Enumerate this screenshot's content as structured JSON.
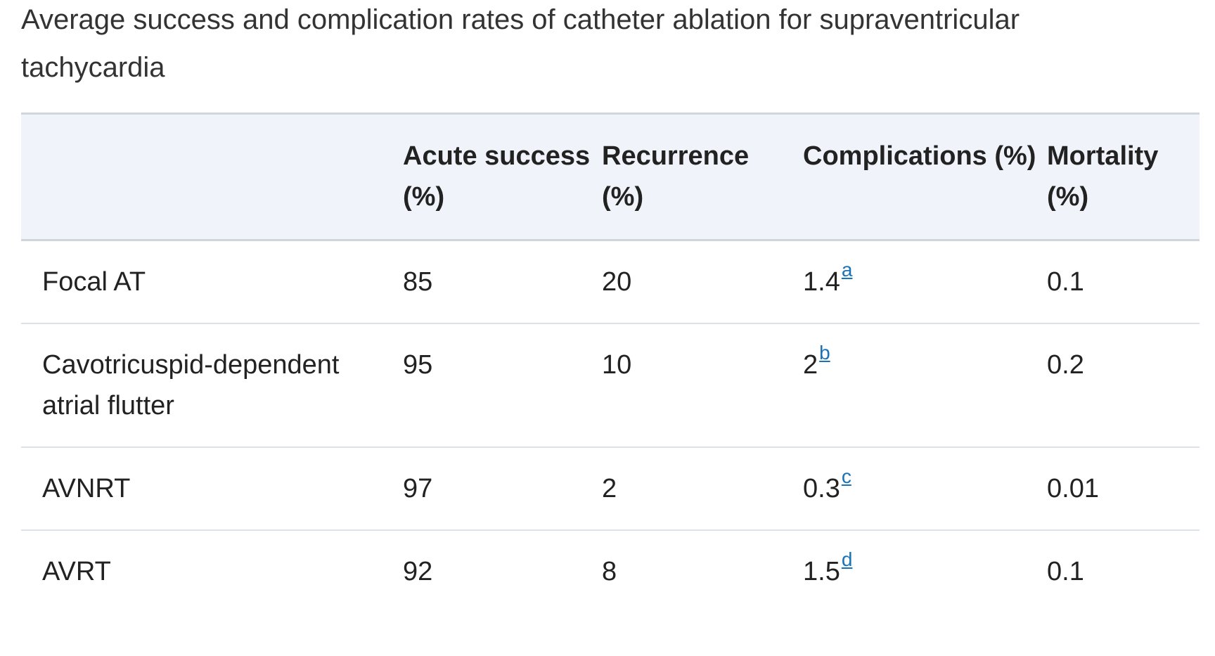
{
  "caption": "Average success and complication rates of catheter ablation for supraventricular tachycardia",
  "table": {
    "headers": [
      "",
      "Acute success (%)",
      "Recurrence (%)",
      "Complications (%)",
      "Mortality (%)"
    ],
    "rows": [
      {
        "name": "Focal AT",
        "acute_success": "85",
        "recurrence": "20",
        "complications": "1.4",
        "complications_note": "a",
        "mortality": "0.1"
      },
      {
        "name": "Cavotricuspid-dependent atrial flutter",
        "acute_success": "95",
        "recurrence": "10",
        "complications": "2",
        "complications_note": "b",
        "mortality": "0.2"
      },
      {
        "name": "AVNRT",
        "acute_success": "97",
        "recurrence": "2",
        "complications": "0.3",
        "complications_note": "c",
        "mortality": "0.01"
      },
      {
        "name": "AVRT",
        "acute_success": "92",
        "recurrence": "8",
        "complications": "1.5",
        "complications_note": "d",
        "mortality": "0.1"
      }
    ]
  },
  "colors": {
    "header_background": "#f0f4fa",
    "footnote_link": "#1a73b8",
    "row_divider": "#dde2e8"
  }
}
